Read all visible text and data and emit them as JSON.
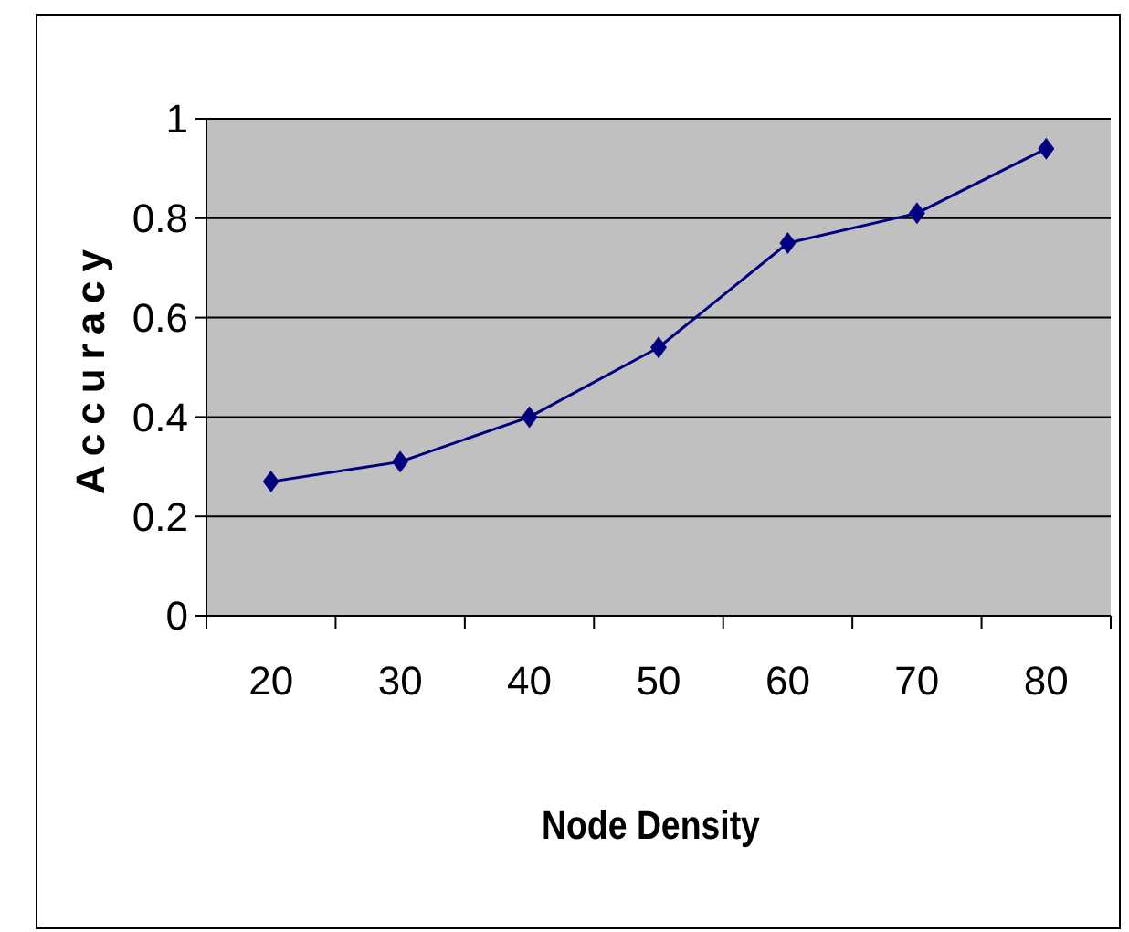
{
  "chart_data": {
    "type": "line",
    "xlabel": "Node Density",
    "ylabel": "Accuracy",
    "categories": [
      "20",
      "30",
      "40",
      "50",
      "60",
      "70",
      "80"
    ],
    "series": [
      {
        "color": "#000080",
        "values": [
          0.27,
          0.31,
          0.4,
          0.54,
          0.75,
          0.81,
          0.94
        ]
      }
    ],
    "ylim": [
      0,
      1
    ],
    "yticks": [
      0,
      0.2,
      0.4,
      0.6,
      0.8,
      1
    ],
    "grid": "y",
    "marker": "diamond",
    "line_style": "solid"
  }
}
